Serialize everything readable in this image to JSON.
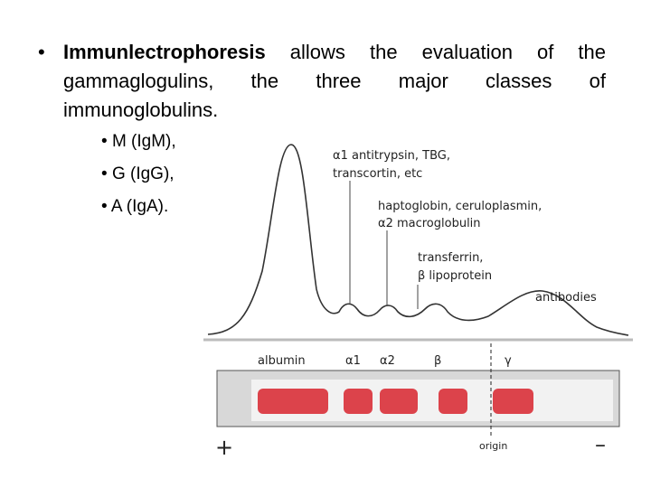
{
  "bullet": {
    "bold": "Immunlectrophoresis",
    "text": " allows the evaluation of the gammaglogulins, the three major classes of immunoglobulins."
  },
  "sub_bullets": [
    "M (IgM),",
    "G (IgG),",
    "A (IgA)."
  ],
  "diagram": {
    "annotations": [
      "α1 antitrypsin, TBG,",
      "transcortin, etc",
      "haptoglobin, ceruloplasmin,",
      "α2 macroglobulin",
      "transferrin,",
      "β lipoprotein",
      "antibodies"
    ],
    "fractions": [
      "albumin",
      "α1",
      "α2",
      "β",
      "γ"
    ],
    "anode": "+",
    "cathode": "–",
    "origin": "origin"
  }
}
